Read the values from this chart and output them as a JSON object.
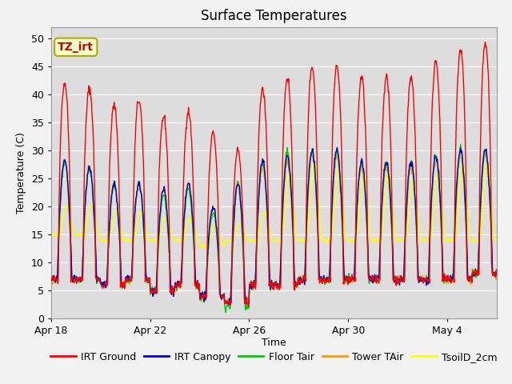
{
  "title": "Surface Temperatures",
  "xlabel": "Time",
  "ylabel": "Temperature (C)",
  "ylim": [
    0,
    52
  ],
  "yticks": [
    0,
    5,
    10,
    15,
    20,
    25,
    30,
    35,
    40,
    45,
    50
  ],
  "xtick_labels": [
    "Apr 18",
    "Apr 22",
    "Apr 26",
    "Apr 30",
    "May 4"
  ],
  "xtick_positions": [
    0,
    4,
    8,
    12,
    16
  ],
  "series_colors": [
    "#ff0000",
    "#0000cc",
    "#00cc00",
    "#ff9900",
    "#ffff00"
  ],
  "series_names": [
    "IRT Ground",
    "IRT Canopy",
    "Floor Tair",
    "Tower TAir",
    "TsoilD_2cm"
  ],
  "annotation_text": "TZ_irt",
  "annotation_color": "#cc0000",
  "annotation_bg": "#ffffcc",
  "bg_color": "#dddddd",
  "fig_bg_color": "#f2f2f2",
  "title_fontsize": 12,
  "axis_label_fontsize": 9,
  "tick_label_fontsize": 9,
  "legend_fontsize": 9,
  "num_days": 18,
  "pts_per_day": 48,
  "red_min": [
    7,
    7,
    6,
    7,
    5,
    6,
    4,
    3,
    6,
    6,
    7,
    7,
    7,
    7,
    7,
    7,
    7,
    8
  ],
  "red_max": [
    42,
    41,
    38,
    39,
    36,
    37,
    33,
    30,
    41,
    43,
    45,
    45,
    43,
    43,
    43,
    46,
    48,
    49
  ],
  "blue_min": [
    7,
    7,
    6,
    7,
    5,
    6,
    4,
    3,
    6,
    6,
    7,
    7,
    7,
    7,
    7,
    7,
    7,
    8
  ],
  "blue_max": [
    28,
    27,
    24,
    24,
    23,
    24,
    20,
    24,
    28,
    29,
    30,
    30,
    28,
    28,
    28,
    29,
    30,
    30
  ],
  "green_min": [
    7,
    7,
    6,
    7,
    5,
    6,
    4,
    2,
    6,
    6,
    7,
    7,
    7,
    7,
    7,
    7,
    7,
    8
  ],
  "green_max": [
    28,
    27,
    24,
    24,
    22,
    23,
    19,
    24,
    28,
    30,
    30,
    30,
    28,
    28,
    28,
    29,
    30,
    30
  ],
  "orange_min": [
    7,
    7,
    6,
    7,
    5,
    6,
    4,
    3,
    6,
    6,
    7,
    7,
    7,
    7,
    7,
    7,
    7,
    8
  ],
  "orange_max": [
    28,
    27,
    24,
    24,
    23,
    24,
    20,
    24,
    27,
    28,
    29,
    29,
    27,
    27,
    27,
    28,
    29,
    29
  ],
  "yellow_min": [
    15,
    15,
    14,
    14,
    14,
    14,
    13,
    14,
    14,
    14,
    14,
    14,
    14,
    14,
    14,
    14,
    14,
    14
  ],
  "yellow_max": [
    20,
    20,
    19,
    19,
    18,
    18,
    17,
    17,
    19,
    26,
    28,
    27,
    26,
    26,
    25,
    26,
    28,
    28
  ],
  "line_width": 1.0,
  "grid_color": "#ffffff",
  "grid_linewidth": 0.8
}
